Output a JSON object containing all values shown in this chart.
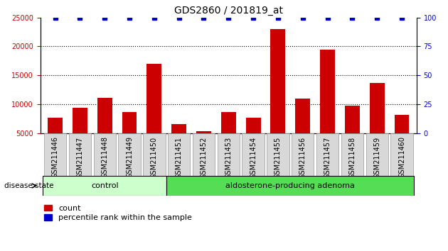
{
  "title": "GDS2860 / 201819_at",
  "categories": [
    "GSM211446",
    "GSM211447",
    "GSM211448",
    "GSM211449",
    "GSM211450",
    "GSM211451",
    "GSM211452",
    "GSM211453",
    "GSM211454",
    "GSM211455",
    "GSM211456",
    "GSM211457",
    "GSM211458",
    "GSM211459",
    "GSM211460"
  ],
  "counts": [
    7600,
    9400,
    11100,
    8600,
    17000,
    6500,
    5300,
    8600,
    7700,
    23000,
    11000,
    19500,
    9800,
    13700,
    8100
  ],
  "percentile": [
    100,
    100,
    100,
    100,
    100,
    100,
    100,
    100,
    100,
    100,
    100,
    100,
    100,
    100,
    100
  ],
  "bar_color": "#cc0000",
  "dot_color": "#0000cc",
  "ylim_left": [
    5000,
    25000
  ],
  "ylim_right": [
    0,
    100
  ],
  "yticks_left": [
    5000,
    10000,
    15000,
    20000,
    25000
  ],
  "yticks_right": [
    0,
    25,
    50,
    75,
    100
  ],
  "grid_values": [
    10000,
    15000,
    20000
  ],
  "control_count": 5,
  "control_label": "control",
  "adenoma_label": "aldosterone-producing adenoma",
  "disease_state_label": "disease state",
  "legend_count_label": "count",
  "legend_percentile_label": "percentile rank within the sample",
  "control_color": "#ccffcc",
  "adenoma_color": "#55dd55",
  "bar_bottom": 5000,
  "title_fontsize": 10,
  "tick_fontsize": 7,
  "axis_label_color_left": "#cc0000",
  "axis_label_color_right": "#0000cc"
}
